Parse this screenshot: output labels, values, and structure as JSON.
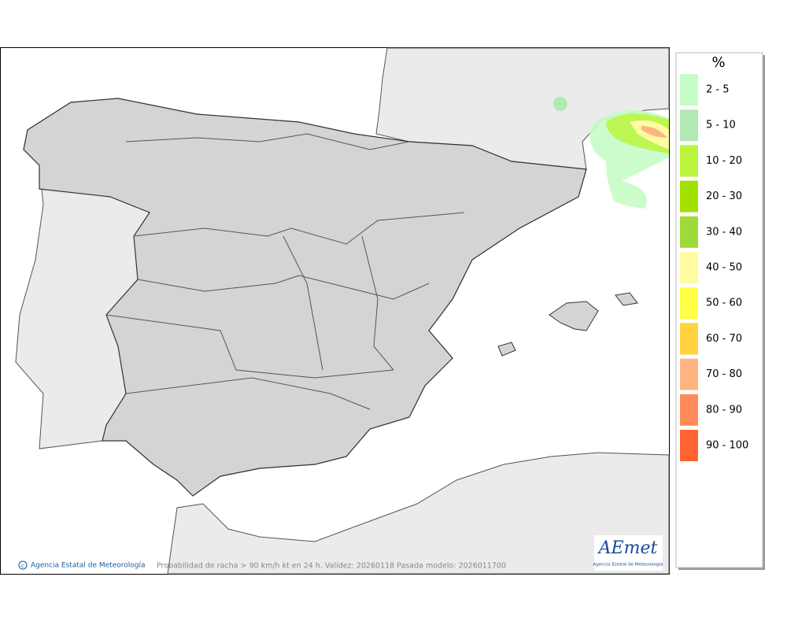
{
  "legend": {
    "title": "%",
    "items": [
      {
        "label": "2 - 5",
        "color": "#c6fcc6"
      },
      {
        "label": "5 - 10",
        "color": "#b2e8b4"
      },
      {
        "label": "10 - 20",
        "color": "#baf43c"
      },
      {
        "label": "20 - 30",
        "color": "#a2e000"
      },
      {
        "label": "30 - 40",
        "color": "#a0da3a"
      },
      {
        "label": "40 - 50",
        "color": "#fffca0"
      },
      {
        "label": "50 - 60",
        "color": "#ffff46"
      },
      {
        "label": "60 - 70",
        "color": "#ffd240"
      },
      {
        "label": "70 - 80",
        "color": "#ffb482"
      },
      {
        "label": "80 - 90",
        "color": "#ff8c5a"
      },
      {
        "label": "90 - 100",
        "color": "#ff6432"
      }
    ]
  },
  "footer": {
    "credit": "Agencia Estatal de Meteorología",
    "caption": "Probabilidad de racha > 90 km/h kt en 24 h. Validez: 20260118 Pasada modelo: 2026011700"
  },
  "logo": {
    "name": "AEmet",
    "subtitle": "Agencia Estatal de Meteorología"
  }
}
